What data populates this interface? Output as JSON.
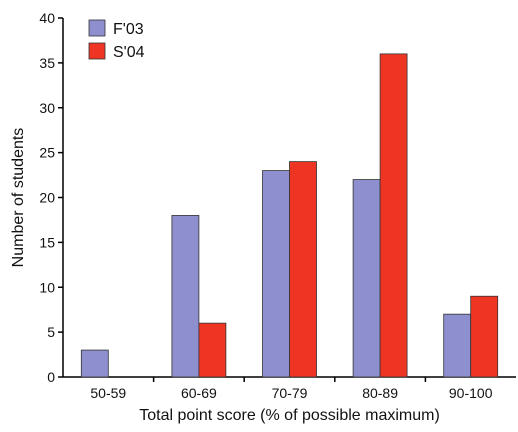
{
  "chart_data": {
    "type": "bar",
    "xlabel": "Total point score (% of possible maximum)",
    "ylabel": "Number of students",
    "categories": [
      "50-59",
      "60-69",
      "70-79",
      "80-89",
      "90-100"
    ],
    "series": [
      {
        "name": "F'03",
        "color": "#8d8fcf",
        "values": [
          3,
          18,
          23,
          22,
          7
        ]
      },
      {
        "name": "S'04",
        "color": "#ee3524",
        "values": [
          0,
          6,
          24,
          36,
          9
        ]
      }
    ],
    "ylim": [
      0,
      40
    ],
    "yticks": [
      0,
      5,
      10,
      15,
      20,
      25,
      30,
      35,
      40
    ],
    "ytick_labels": [
      "0",
      "5",
      "10",
      "15",
      "20",
      "25",
      "30",
      "35",
      "40"
    ],
    "grid": false,
    "legend_position": "top-left"
  }
}
